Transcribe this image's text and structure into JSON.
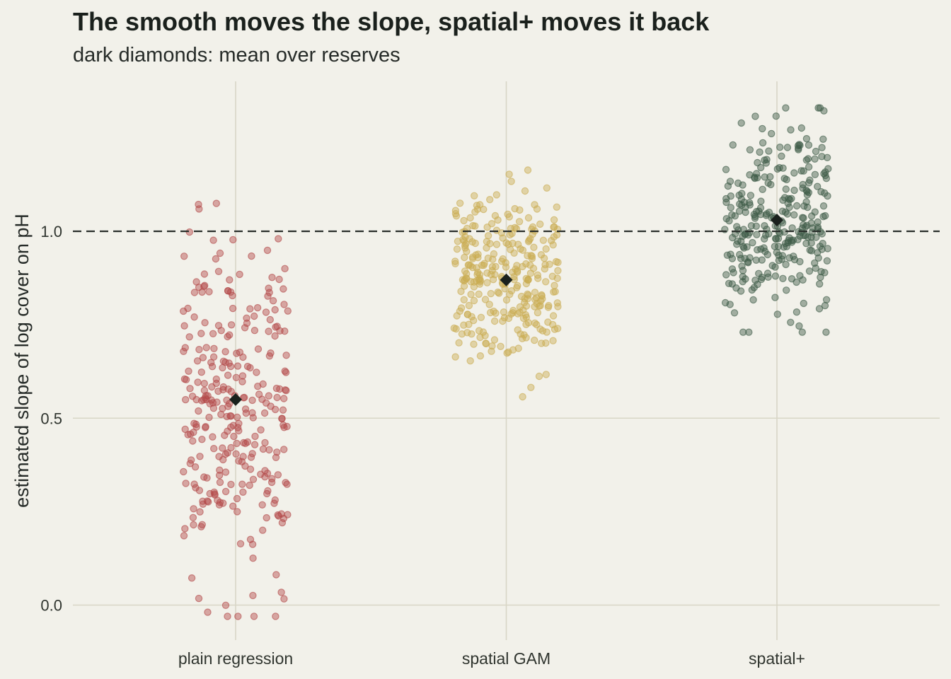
{
  "chart_data": {
    "type": "scatter",
    "title": "The smooth moves the slope, spatial+ moves it back",
    "subtitle": "dark diamonds: mean over reserves",
    "ylabel": "estimated slope of log cover on pH",
    "xlabel": "",
    "ylim": [
      -0.1,
      1.35
    ],
    "yticks": [
      0.0,
      0.5,
      1.0
    ],
    "ytick_labels": [
      "0.0",
      "0.5",
      "1.0"
    ],
    "reference_line": {
      "y": 1.0,
      "style": "dashed"
    },
    "grid": true,
    "categories": [
      "plain regression",
      "spatial GAM",
      "spatial+"
    ],
    "colors": {
      "plain regression": "#b34a4a",
      "spatial GAM": "#c9ac52",
      "spatial+": "#3d5c47",
      "mean_marker": "#1a211d",
      "reference_line": "#2a2f2b",
      "grid": "#d8d6c6"
    },
    "series": [
      {
        "category": "plain regression",
        "n_points": 300,
        "mean": 0.55,
        "sd": 0.22,
        "min": -0.03,
        "max": 1.13
      },
      {
        "category": "spatial GAM",
        "n_points": 300,
        "mean": 0.87,
        "sd": 0.12,
        "min": 0.54,
        "max": 1.24
      },
      {
        "category": "spatial+",
        "n_points": 300,
        "mean": 1.03,
        "sd": 0.12,
        "min": 0.73,
        "max": 1.33
      }
    ],
    "means": [
      0.55,
      0.87,
      1.03
    ]
  }
}
